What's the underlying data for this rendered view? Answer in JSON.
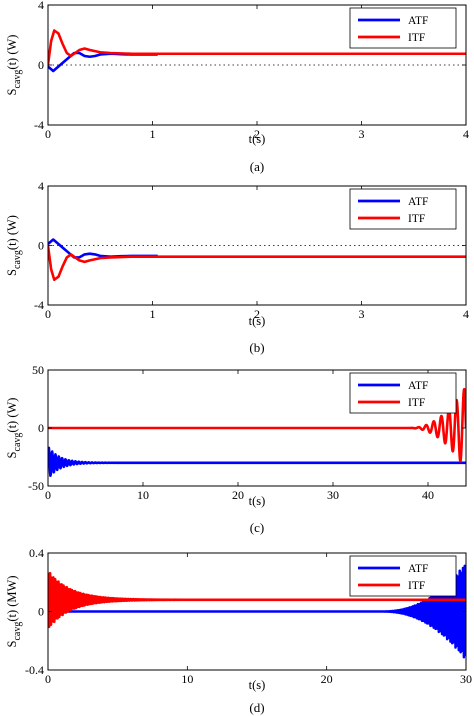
{
  "chart_data": [
    {
      "type": "line",
      "panel_label": "(a)",
      "xlabel": "t(s)",
      "ylabel_main": "S",
      "ylabel_sub": "cavg",
      "ylabel_tail": "(t) (W)",
      "xlim": [
        0,
        4
      ],
      "ylim": [
        -4,
        4
      ],
      "xticks": [
        "0",
        "1",
        "2",
        "3",
        "4"
      ],
      "yticks": [
        "-4",
        "0",
        "4"
      ],
      "ytick_values": [
        -4,
        0,
        4
      ],
      "xtick_values": [
        0,
        1,
        2,
        3,
        4
      ],
      "zero_line": "dotted",
      "legend": "top-right",
      "series": [
        {
          "name": "ATF",
          "color": "#0000ff",
          "x": [
            0,
            0.05,
            0.1,
            0.15,
            0.2,
            0.25,
            0.3,
            0.35,
            0.4,
            0.45,
            0.5,
            0.6,
            0.7,
            0.8,
            0.9,
            1.0,
            1.05
          ],
          "y": [
            -0.1,
            -0.4,
            -0.1,
            0.2,
            0.5,
            0.8,
            0.8,
            0.6,
            0.55,
            0.6,
            0.7,
            0.75,
            0.72,
            0.7,
            0.7,
            0.7,
            0.7
          ]
        },
        {
          "name": "ITF",
          "color": "#ff0000",
          "x": [
            0,
            0.03,
            0.06,
            0.1,
            0.14,
            0.18,
            0.22,
            0.26,
            0.3,
            0.35,
            0.4,
            0.5,
            0.6,
            0.8,
            1.0,
            2.0,
            3.0,
            4.0
          ],
          "y": [
            0,
            1.6,
            2.3,
            2.1,
            1.4,
            0.8,
            0.6,
            0.8,
            1.0,
            1.1,
            1.0,
            0.85,
            0.8,
            0.75,
            0.75,
            0.75,
            0.75,
            0.75
          ]
        }
      ]
    },
    {
      "type": "line",
      "panel_label": "(b)",
      "xlabel": "t(s)",
      "ylabel_main": "S",
      "ylabel_sub": "cavg",
      "ylabel_tail": "(t) (W)",
      "xlim": [
        0,
        4
      ],
      "ylim": [
        -4,
        4
      ],
      "xticks": [
        "0",
        "1",
        "2",
        "3",
        "4"
      ],
      "yticks": [
        "-4",
        "0",
        "4"
      ],
      "ytick_values": [
        -4,
        0,
        4
      ],
      "xtick_values": [
        0,
        1,
        2,
        3,
        4
      ],
      "zero_line": "dotted",
      "legend": "top-right",
      "series": [
        {
          "name": "ATF",
          "color": "#0000ff",
          "x": [
            0,
            0.05,
            0.1,
            0.15,
            0.2,
            0.25,
            0.3,
            0.35,
            0.4,
            0.45,
            0.5,
            0.6,
            0.7,
            0.8,
            0.9,
            1.0,
            1.05
          ],
          "y": [
            0.1,
            0.4,
            0.1,
            -0.2,
            -0.5,
            -0.8,
            -0.8,
            -0.6,
            -0.55,
            -0.6,
            -0.7,
            -0.75,
            -0.72,
            -0.7,
            -0.7,
            -0.7,
            -0.7
          ]
        },
        {
          "name": "ITF",
          "color": "#ff0000",
          "x": [
            0,
            0.03,
            0.06,
            0.1,
            0.14,
            0.18,
            0.22,
            0.26,
            0.3,
            0.35,
            0.4,
            0.5,
            0.6,
            0.8,
            1.0,
            2.0,
            3.0,
            4.0
          ],
          "y": [
            0,
            -1.6,
            -2.3,
            -2.1,
            -1.4,
            -0.8,
            -0.6,
            -0.8,
            -1.0,
            -1.1,
            -1.0,
            -0.85,
            -0.8,
            -0.75,
            -0.75,
            -0.75,
            -0.75,
            -0.75
          ]
        }
      ]
    },
    {
      "type": "line",
      "panel_label": "(c)",
      "xlabel": "t(s)",
      "ylabel_main": "S",
      "ylabel_sub": "cavg",
      "ylabel_tail": "(t) (W)",
      "xlim": [
        0,
        44
      ],
      "ylim": [
        -50,
        50
      ],
      "xticks": [
        "0",
        "10",
        "20",
        "30",
        "40"
      ],
      "yticks": [
        "-50",
        "0",
        "50"
      ],
      "ytick_values": [
        -50,
        0,
        50
      ],
      "xtick_values": [
        0,
        10,
        20,
        30,
        40
      ],
      "zero_line": "none",
      "legend": "top-right",
      "series": [
        {
          "name": "ATF",
          "color": "#0000ff",
          "baseline": -30,
          "osc_start": 0,
          "osc_amp": 14,
          "osc_decay": 1.2,
          "osc_period": 0.35,
          "x_end": 44
        },
        {
          "name": "ITF",
          "color": "#ff0000",
          "baseline": 0,
          "growth_start": 38,
          "growth_amp_end": 36,
          "growth_period": 0.8,
          "x_end": 44
        }
      ]
    },
    {
      "type": "line",
      "panel_label": "(d)",
      "xlabel": "t(s)",
      "ylabel_main": "S",
      "ylabel_sub": "cavg",
      "ylabel_tail": "(t) (MW)",
      "xlim": [
        0,
        30
      ],
      "ylim": [
        -0.4,
        0.4
      ],
      "xticks": [
        "0",
        "10",
        "20",
        "30"
      ],
      "yticks": [
        "-0.4",
        "0",
        "0.4"
      ],
      "ytick_values": [
        -0.4,
        0,
        0.4
      ],
      "xtick_values": [
        0,
        10,
        20,
        30
      ],
      "zero_line": "none",
      "legend": "top-right",
      "series": [
        {
          "name": "ATF",
          "color": "#0000ff",
          "baseline": 0,
          "growth_start": 24,
          "growth_amp_end": 0.33,
          "growth_period": 0.12,
          "x_end": 30
        },
        {
          "name": "ITF",
          "color": "#ff0000",
          "baseline": 0.08,
          "osc_start": 0,
          "osc_amp": 0.2,
          "osc_decay": 1.6,
          "osc_period": 0.12,
          "x_end": 30
        }
      ]
    }
  ]
}
